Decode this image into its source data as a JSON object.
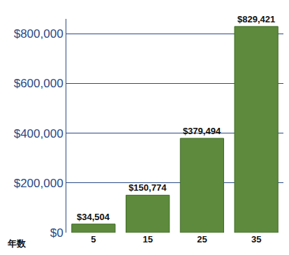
{
  "chart_data": {
    "type": "bar",
    "xlabel": "年数",
    "categories": [
      "5",
      "15",
      "25",
      "35"
    ],
    "values": [
      34504,
      150774,
      379494,
      829421
    ],
    "value_labels": [
      "$34,504",
      "$150,774",
      "$379,494",
      "$829,421"
    ],
    "data_labels": true,
    "color": "#5d8a3c",
    "ylim": [
      0,
      860000
    ],
    "yticks": [
      {
        "value": 0,
        "label": "$0"
      },
      {
        "value": 200000,
        "label": "$200,000"
      },
      {
        "value": 400000,
        "label": "$400,000"
      },
      {
        "value": 600000,
        "label": "$600,000"
      },
      {
        "value": 800000,
        "label": "$800,000"
      }
    ],
    "grid": true
  }
}
